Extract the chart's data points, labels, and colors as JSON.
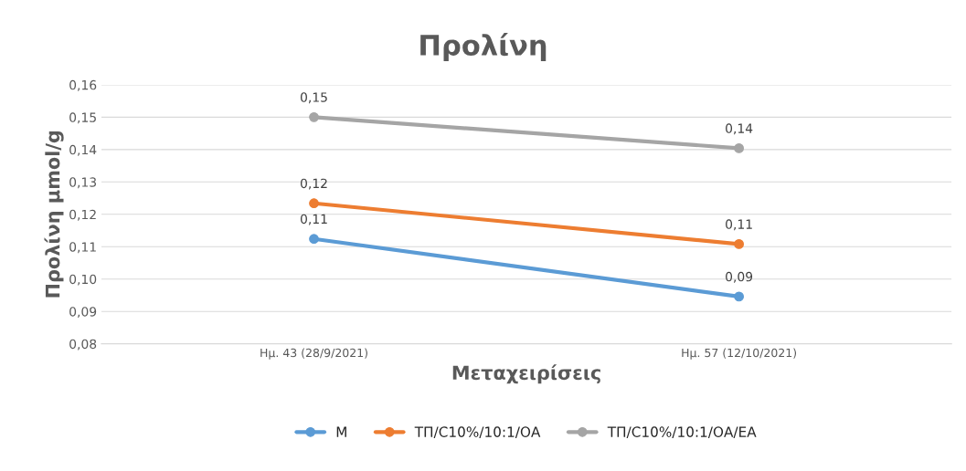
{
  "chart_data": {
    "type": "line",
    "title": "Προλίνη",
    "xlabel": "Μεταχειρίσεις",
    "ylabel": "Προλίνη μmol/g",
    "categories": [
      "Ημ. 43 (28/9/2021)",
      "Ημ. 57 (12/10/2021)"
    ],
    "series": [
      {
        "name": "Μ",
        "color": "#5b9bd5",
        "values": [
          0.1124,
          0.0946
        ],
        "value_labels": [
          "0,11",
          "0,09"
        ]
      },
      {
        "name": "ΤΠ/C10%/10:1/ΟΑ",
        "color": "#ed7d31",
        "values": [
          0.1234,
          0.1108
        ],
        "value_labels": [
          "0,12",
          "0,11"
        ]
      },
      {
        "name": "ΤΠ/C10%/10:1/ΟΑ/ΕΑ",
        "color": "#a5a5a5",
        "values": [
          0.15,
          0.1404
        ],
        "value_labels": [
          "0,15",
          "0,14"
        ]
      }
    ],
    "ylim": [
      0.08,
      0.16
    ],
    "yticks": [
      {
        "value": 0.08,
        "label": "0,08"
      },
      {
        "value": 0.09,
        "label": "0,09"
      },
      {
        "value": 0.1,
        "label": "0,10"
      },
      {
        "value": 0.11,
        "label": "0,11"
      },
      {
        "value": 0.12,
        "label": "0,12"
      },
      {
        "value": 0.13,
        "label": "0,13"
      },
      {
        "value": 0.14,
        "label": "0,14"
      },
      {
        "value": 0.15,
        "label": "0,15"
      },
      {
        "value": 0.16,
        "label": "0,16"
      }
    ],
    "grid": "y",
    "legend": "bottom",
    "marker": "circle",
    "line_style": "solid"
  }
}
